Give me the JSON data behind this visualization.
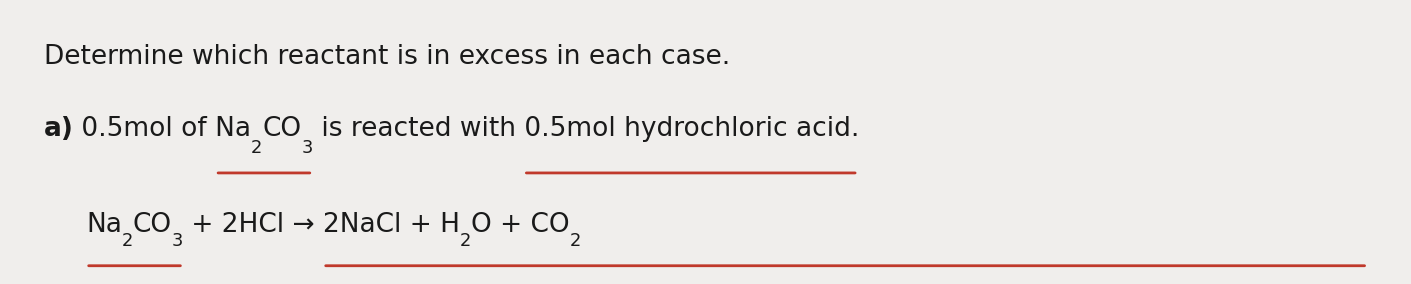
{
  "background_color": "#f0eeec",
  "line1": "Determine which reactant is in excess in each case.",
  "line2_bold": "a)",
  "line2_rest_1": " 0.5mol of Na",
  "line2_sub1": "2",
  "line2_rest_2": "CO",
  "line2_sub2": "3",
  "line2_rest_3": " is reacted with 0.5mol hydrochloric acid.",
  "line3_1": "Na",
  "line3_sub1": "2",
  "line3_2": "CO",
  "line3_sub2": "3",
  "line3_3": " + 2HCl → 2NaCl + H",
  "line3_sub3": "2",
  "line3_4": "O + CO",
  "line3_sub4": "2",
  "underline1_color": "#c0392b",
  "underline2_color": "#c0392b",
  "text_color": "#1a1a1a",
  "font_size_line1": 19,
  "font_size_line2": 19,
  "font_size_line3": 19
}
